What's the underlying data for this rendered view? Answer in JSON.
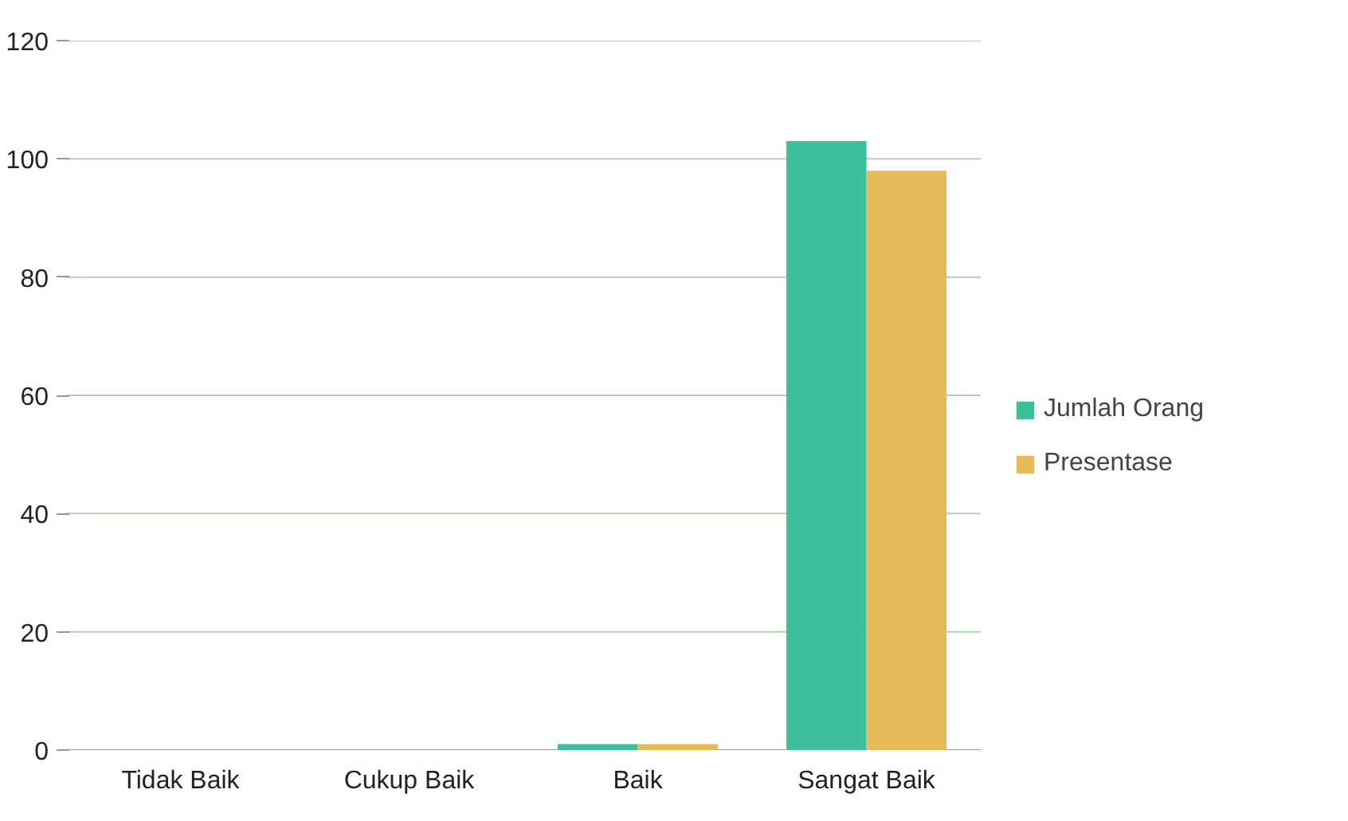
{
  "chart_data": {
    "type": "bar",
    "categories": [
      "Tidak Baik",
      "Cukup Baik",
      "Baik",
      "Sangat Baik"
    ],
    "series": [
      {
        "name": "Jumlah Orang",
        "color": "#3dbf9c",
        "values": [
          0,
          0,
          1,
          103
        ]
      },
      {
        "name": "Presentase",
        "color": "#e6ba58",
        "values": [
          0,
          0,
          1,
          98
        ]
      }
    ],
    "ylim": [
      0,
      120
    ],
    "yticks": [
      0,
      20,
      40,
      60,
      80,
      100,
      120
    ],
    "grid": "y",
    "legend": "right"
  }
}
